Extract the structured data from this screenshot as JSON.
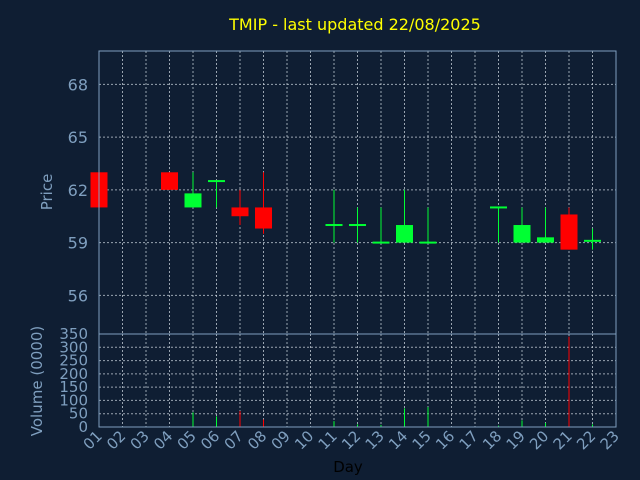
{
  "chart_data": {
    "type": "candlestick",
    "title": "TMIP - last updated 22/08/2025",
    "xlabel": "Day",
    "x_ticks": [
      "01",
      "02",
      "03",
      "04",
      "05",
      "06",
      "07",
      "08",
      "09",
      "10",
      "11",
      "12",
      "13",
      "14",
      "15",
      "16",
      "17",
      "18",
      "19",
      "20",
      "21",
      "22",
      "23"
    ],
    "price_panel": {
      "ylabel": "Price",
      "ylim": [
        53.8,
        69.9
      ],
      "y_ticks": [
        56,
        59,
        62,
        65,
        68
      ],
      "grid": true
    },
    "volume_panel": {
      "ylabel": "Volume (0000)",
      "ylim": [
        0,
        350
      ],
      "y_ticks": [
        0,
        50,
        100,
        150,
        200,
        250,
        300,
        350
      ],
      "grid": true
    },
    "colors": {
      "up": "#00ff33",
      "down": "#ff0000",
      "background": "#0f1e33",
      "title": "#ffff00",
      "axis": "#7f9fbf"
    },
    "candles": [
      {
        "day": "01",
        "open": 63.0,
        "high": 63.0,
        "low": 61.0,
        "close": 61.0,
        "volume": 0
      },
      {
        "day": "04",
        "open": 63.0,
        "high": 63.0,
        "low": 62.0,
        "close": 62.0,
        "volume": 2
      },
      {
        "day": "05",
        "open": 61.0,
        "high": 63.0,
        "low": 61.0,
        "close": 61.8,
        "volume": 55
      },
      {
        "day": "06",
        "open": 62.5,
        "high": 62.5,
        "low": 61.0,
        "close": 62.5,
        "volume": 40
      },
      {
        "day": "07",
        "open": 61.0,
        "high": 62.0,
        "low": 60.0,
        "close": 60.5,
        "volume": 60
      },
      {
        "day": "08",
        "open": 61.0,
        "high": 63.0,
        "low": 59.5,
        "close": 59.8,
        "volume": 28
      },
      {
        "day": "11",
        "open": 60.0,
        "high": 62.0,
        "low": 59.0,
        "close": 60.0,
        "volume": 22
      },
      {
        "day": "12",
        "open": 60.0,
        "high": 61.0,
        "low": 59.0,
        "close": 60.0,
        "volume": 10
      },
      {
        "day": "13",
        "open": 59.0,
        "high": 61.0,
        "low": 59.0,
        "close": 59.0,
        "volume": 8
      },
      {
        "day": "14",
        "open": 59.0,
        "high": 62.0,
        "low": 59.0,
        "close": 60.0,
        "volume": 70
      },
      {
        "day": "15",
        "open": 59.0,
        "high": 61.0,
        "low": 59.0,
        "close": 59.0,
        "volume": 75
      },
      {
        "day": "18",
        "open": 61.0,
        "high": 61.0,
        "low": 59.0,
        "close": 61.0,
        "volume": 5
      },
      {
        "day": "19",
        "open": 59.0,
        "high": 61.0,
        "low": 59.0,
        "close": 60.0,
        "volume": 25
      },
      {
        "day": "20",
        "open": 59.0,
        "high": 61.0,
        "low": 59.0,
        "close": 59.3,
        "volume": 15
      },
      {
        "day": "21",
        "open": 60.6,
        "high": 61.0,
        "low": 58.6,
        "close": 58.6,
        "volume": 340
      },
      {
        "day": "22",
        "open": 59.0,
        "high": 59.8,
        "low": 58.6,
        "close": 59.1,
        "volume": 10
      }
    ]
  }
}
